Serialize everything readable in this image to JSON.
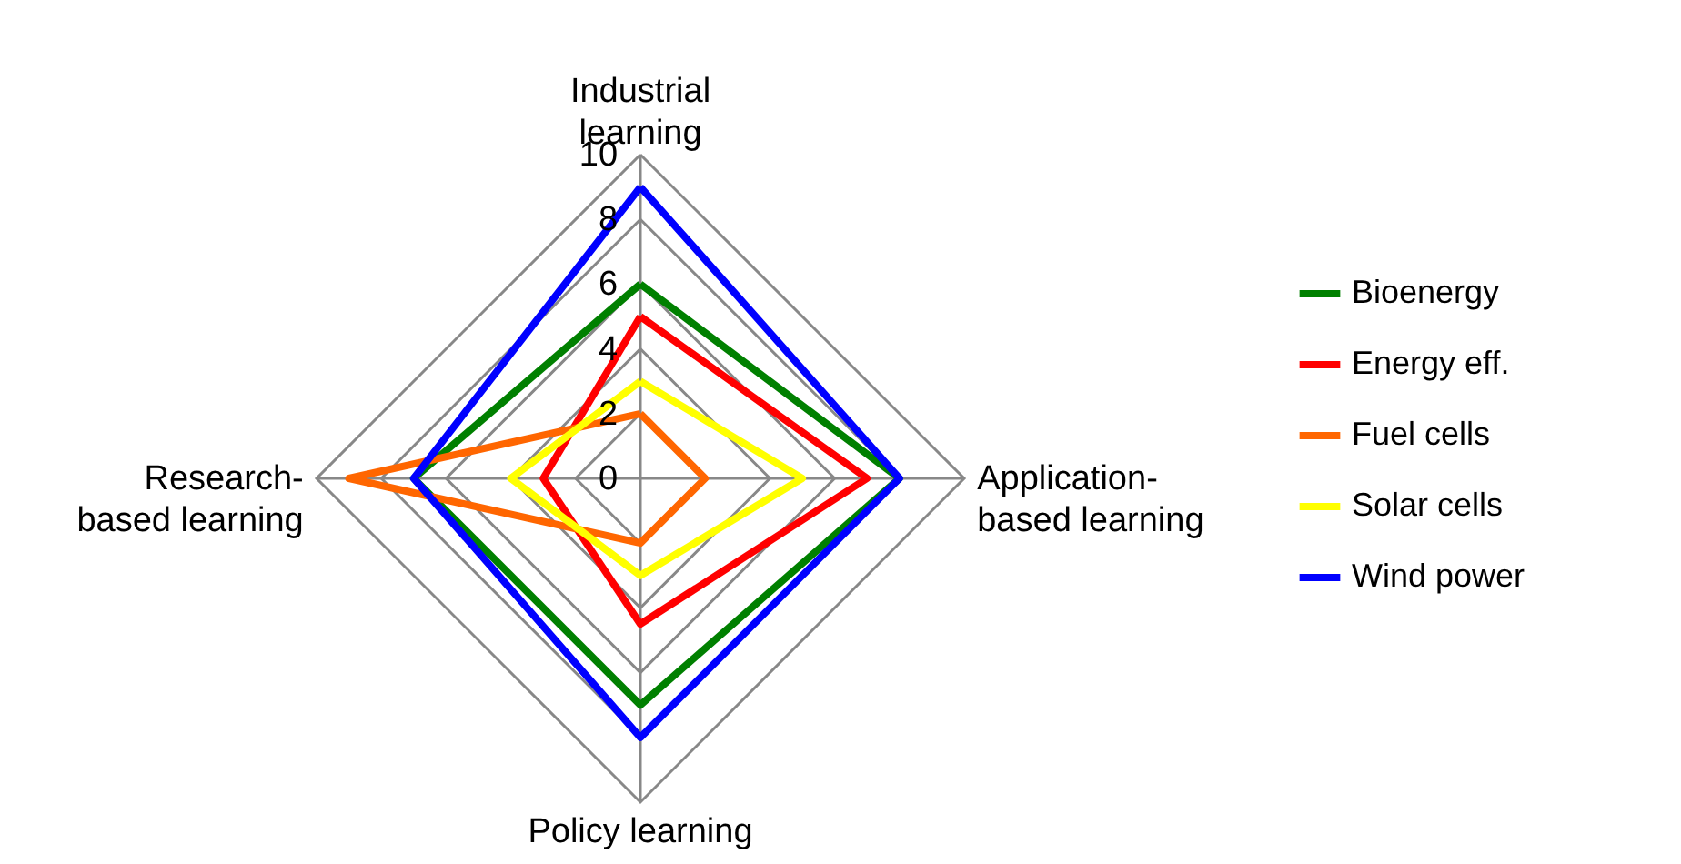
{
  "chart_data": {
    "type": "radar",
    "categories": [
      "Industrial learning",
      "Application-based learning",
      "Policy learning",
      "Research-based learning"
    ],
    "series": [
      {
        "name": "Bioenergy",
        "color": "#008000",
        "values": [
          6,
          8,
          7,
          7
        ]
      },
      {
        "name": "Energy eff.",
        "color": "#ff0000",
        "values": [
          5,
          7,
          4.5,
          3
        ]
      },
      {
        "name": "Fuel cells",
        "color": "#ff6600",
        "values": [
          2,
          2,
          2,
          9
        ]
      },
      {
        "name": "Solar cells",
        "color": "#ffff00",
        "values": [
          3,
          5,
          3,
          4
        ]
      },
      {
        "name": "Wind power",
        "color": "#0000ff",
        "values": [
          9,
          8,
          8,
          7
        ]
      }
    ],
    "ylim": [
      0,
      10
    ],
    "yticks": [
      0,
      2,
      4,
      6,
      8,
      10
    ],
    "grid": true,
    "legend": "right",
    "marker": "none",
    "line_style": "solid"
  }
}
